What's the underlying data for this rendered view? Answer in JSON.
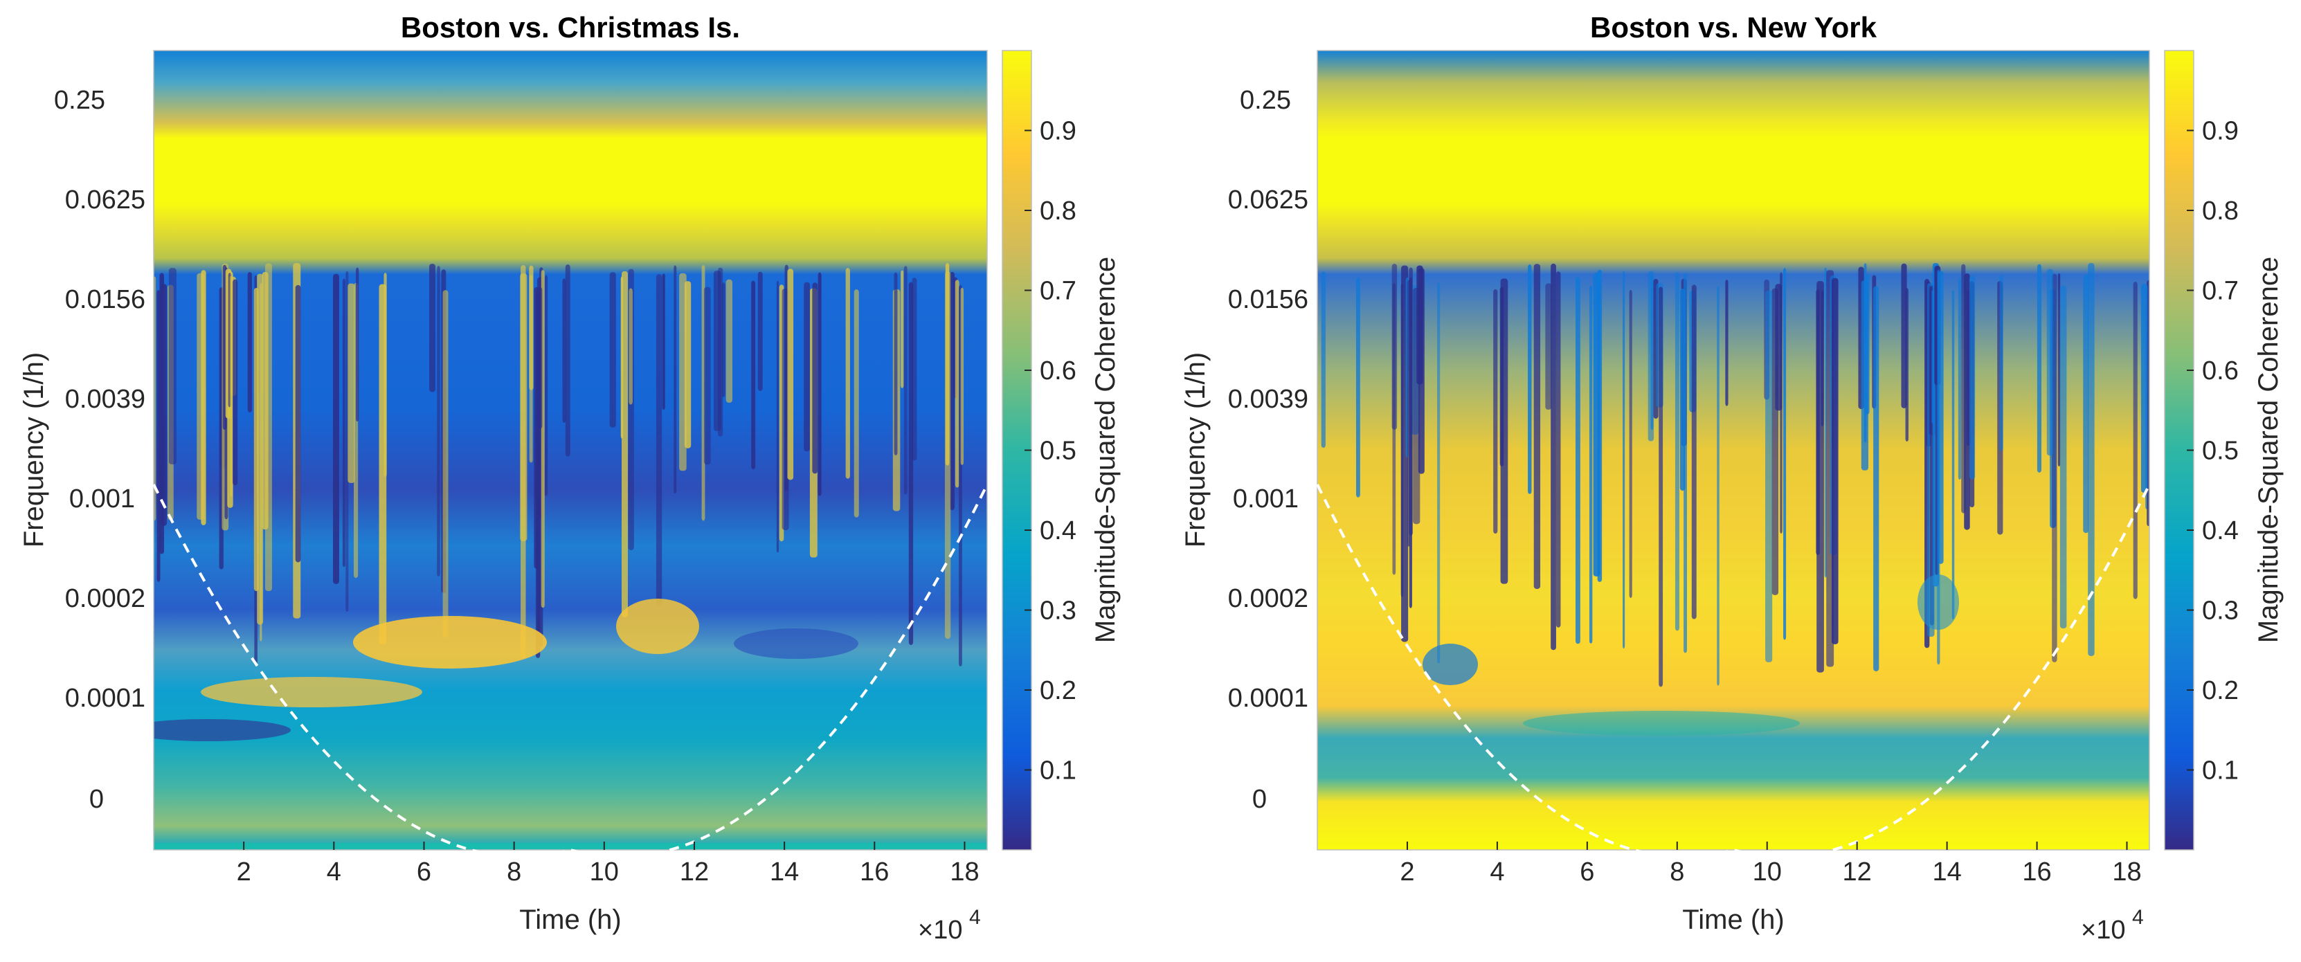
{
  "chart_data": [
    {
      "type": "heatmap",
      "title": "Boston vs. Christmas Is.",
      "xlabel": "Time (h)",
      "ylabel": "Frequency (1/h)",
      "x_tick_values": [
        2,
        4,
        6,
        8,
        10,
        12,
        14,
        16,
        18
      ],
      "x_tick_labels": [
        "2",
        "4",
        "6",
        "8",
        "10",
        "12",
        "14",
        "16",
        "18"
      ],
      "x_multiplier_label": "×10",
      "x_multiplier_exponent": "4",
      "xlim": [
        0,
        18.5
      ],
      "y_tick_labels": [
        "0.25",
        "0.0625",
        "0.0156",
        "0.0039",
        "0.001",
        "0.0002",
        "0.0001",
        "0"
      ],
      "colorbar": {
        "label": "Magnitude-Squared Coherence",
        "ticks": [
          "0.1",
          "0.2",
          "0.3",
          "0.4",
          "0.5",
          "0.6",
          "0.7",
          "0.8",
          "0.9"
        ],
        "range": [
          0,
          1
        ],
        "colors": [
          "#352a87",
          "#0f5cdd",
          "#1481d6",
          "#06a4ca",
          "#2eb7a4",
          "#87bf77",
          "#d1bb59",
          "#fec832",
          "#f9fb0e"
        ]
      },
      "cone_of_influence": "dashed white"
    },
    {
      "type": "heatmap",
      "title": "Boston vs. New York",
      "xlabel": "Time (h)",
      "ylabel": "Frequency (1/h)",
      "x_tick_values": [
        2,
        4,
        6,
        8,
        10,
        12,
        14,
        16,
        18
      ],
      "x_tick_labels": [
        "2",
        "4",
        "6",
        "8",
        "10",
        "12",
        "14",
        "16",
        "18"
      ],
      "x_multiplier_label": "×10",
      "x_multiplier_exponent": "4",
      "xlim": [
        0,
        18.5
      ],
      "y_tick_labels": [
        "0.25",
        "0.0625",
        "0.0156",
        "0.0039",
        "0.001",
        "0.0002",
        "0.0001",
        "0"
      ],
      "colorbar": {
        "label": "Magnitude-Squared Coherence",
        "ticks": [
          "0.1",
          "0.2",
          "0.3",
          "0.4",
          "0.5",
          "0.6",
          "0.7",
          "0.8",
          "0.9"
        ],
        "range": [
          0,
          1
        ],
        "colors": [
          "#352a87",
          "#0f5cdd",
          "#1481d6",
          "#06a4ca",
          "#2eb7a4",
          "#87bf77",
          "#d1bb59",
          "#fec832",
          "#f9fb0e"
        ]
      },
      "cone_of_influence": "dashed white"
    }
  ]
}
